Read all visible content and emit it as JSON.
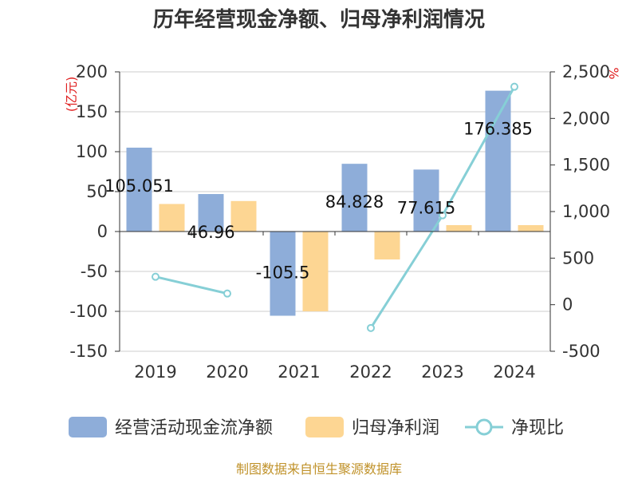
{
  "chart_data": {
    "type": "bar",
    "title": "历年经营现金净额、归母净利润情况",
    "categories": [
      "2019",
      "2020",
      "2021",
      "2022",
      "2023",
      "2024"
    ],
    "left_axis": {
      "unit_label": "(亿元)",
      "ylim": [
        -150,
        200
      ],
      "ticks": [
        200,
        150,
        100,
        50,
        0,
        -50,
        -100,
        -150
      ]
    },
    "right_axis": {
      "unit_label": "%",
      "ylim": [
        -500,
        2500
      ],
      "ticks": [
        2500,
        2000,
        1500,
        1000,
        500,
        0,
        -500
      ],
      "tick_labels": [
        "2,500",
        "2,000",
        "1,500",
        "1,000",
        "500",
        "0",
        "-500"
      ]
    },
    "series": [
      {
        "name": "经营活动现金流净额",
        "kind": "bar",
        "axis": "left",
        "color": "#8eadd9",
        "values": [
          105.051,
          46.96,
          -105.5,
          84.828,
          77.615,
          176.385
        ],
        "data_labels": [
          "105.051",
          "46.96",
          "-105.5",
          "84.828",
          "77.615",
          "176.385"
        ]
      },
      {
        "name": "归母净利润",
        "kind": "bar",
        "axis": "left",
        "color": "#fdd693",
        "values": [
          34.5,
          38.2,
          -100.0,
          -35.0,
          8.0,
          8.0
        ]
      },
      {
        "name": "净现比",
        "kind": "line",
        "axis": "right",
        "color": "#86cfd6",
        "values": [
          300,
          120,
          null,
          -250,
          960,
          2340
        ]
      }
    ],
    "grid": true,
    "legend_position": "bottom",
    "source": "制图数据来自恒生聚源数据库"
  }
}
